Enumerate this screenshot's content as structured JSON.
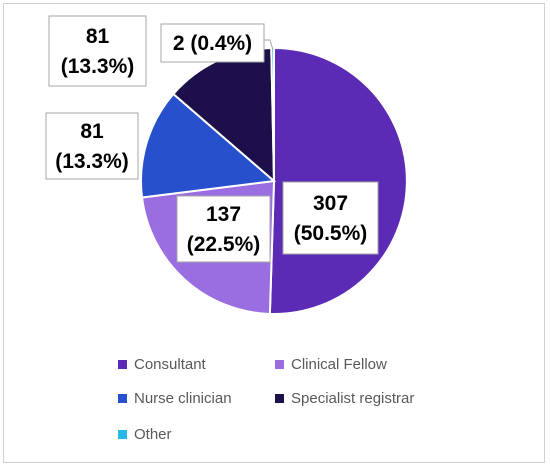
{
  "chart_data": {
    "type": "pie",
    "categories": [
      "Consultant",
      "Clinical Fellow",
      "Nurse clinician",
      "Specialist registrar",
      "Other"
    ],
    "values": [
      307,
      137,
      81,
      81,
      2
    ],
    "percent_labels": [
      "50.5%",
      "22.5%",
      "13.3%",
      "13.3%",
      "0.4%"
    ],
    "colors": [
      "#5b2bb5",
      "#9a6ee0",
      "#2650cc",
      "#1d0f4a",
      "#27b8e8"
    ],
    "data_labels": [
      {
        "value": "307",
        "pct": "(50.5%)"
      },
      {
        "value": "137",
        "pct": "(22.5%)"
      },
      {
        "value": "81",
        "pct": "(13.3%)"
      },
      {
        "value": "81",
        "pct": "(13.3%)"
      },
      {
        "value": "2 (0.4%)",
        "pct": ""
      }
    ],
    "legend_position": "bottom",
    "start_angle_deg": 0,
    "direction": "clockwise"
  }
}
